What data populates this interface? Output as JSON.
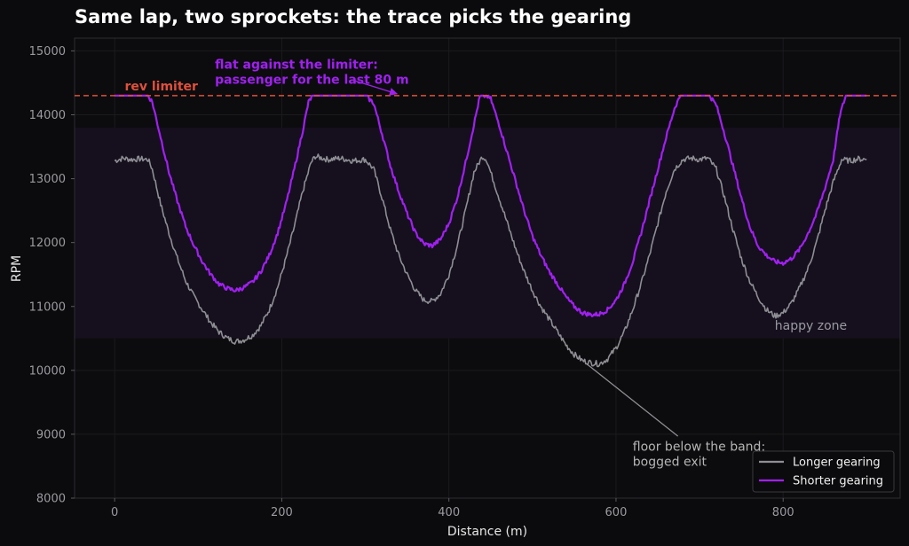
{
  "chart_data": {
    "type": "line",
    "title": "Same lap, two sprockets: the trace picks the gearing",
    "xlabel": "Distance (m)",
    "ylabel": "RPM",
    "xlim": [
      -48,
      940
    ],
    "ylim": [
      8000,
      15200
    ],
    "x_ticks": [
      0,
      200,
      400,
      600,
      800
    ],
    "y_ticks": [
      8000,
      9000,
      10000,
      11000,
      12000,
      13000,
      14000,
      15000
    ],
    "grid": true,
    "legend_position": "bottom-right",
    "colors": {
      "background": "#0b0b0d",
      "plot_background": "#0c0c0e",
      "band": "#160f1e",
      "shorter": "#a020f0",
      "longer": "#8e8e94",
      "limiter": "#e0503c",
      "annotation_purple": "#a020f0",
      "annotation_gray": "#b5b5b5"
    },
    "happy_zone": {
      "label": "happy zone",
      "y_range": [
        10500,
        13800
      ]
    },
    "limiter": {
      "label": "rev limiter",
      "y": 14300
    },
    "series": [
      {
        "name": "Longer gearing",
        "key": "longer",
        "x": [
          0,
          10,
          20,
          30,
          40,
          45,
          55,
          65,
          75,
          85,
          95,
          105,
          115,
          125,
          135,
          145,
          155,
          165,
          175,
          185,
          195,
          205,
          215,
          225,
          235,
          240,
          255,
          270,
          285,
          300,
          310,
          320,
          330,
          340,
          350,
          360,
          370,
          380,
          390,
          400,
          410,
          420,
          430,
          440,
          445,
          450,
          460,
          470,
          480,
          490,
          500,
          510,
          520,
          530,
          540,
          550,
          560,
          570,
          580,
          590,
          600,
          610,
          620,
          630,
          640,
          650,
          660,
          670,
          680,
          690,
          700,
          710,
          720,
          730,
          740,
          750,
          760,
          770,
          780,
          790,
          800,
          810,
          820,
          830,
          840,
          850,
          860,
          870,
          880,
          890,
          900
        ],
        "y": [
          13280,
          13320,
          13300,
          13310,
          13300,
          13150,
          12600,
          12150,
          11750,
          11400,
          11150,
          10950,
          10750,
          10600,
          10500,
          10450,
          10480,
          10550,
          10700,
          10950,
          11300,
          11750,
          12250,
          12800,
          13250,
          13350,
          13300,
          13320,
          13280,
          13300,
          13150,
          12700,
          12200,
          11800,
          11500,
          11250,
          11100,
          11080,
          11200,
          11500,
          11950,
          12500,
          13100,
          13350,
          13300,
          13100,
          12700,
          12300,
          11900,
          11550,
          11250,
          11000,
          10800,
          10600,
          10400,
          10250,
          10150,
          10120,
          10100,
          10180,
          10350,
          10600,
          10950,
          11350,
          11800,
          12300,
          12800,
          13150,
          13300,
          13320,
          13300,
          13320,
          13150,
          12700,
          12200,
          11750,
          11400,
          11150,
          10950,
          10850,
          10900,
          11050,
          11300,
          11600,
          12000,
          12500,
          12950,
          13300,
          13280,
          13310,
          13300
        ]
      },
      {
        "name": "Shorter gearing",
        "key": "shorter",
        "x": [
          0,
          10,
          20,
          30,
          40,
          45,
          55,
          65,
          75,
          85,
          95,
          105,
          115,
          125,
          135,
          145,
          155,
          165,
          175,
          185,
          195,
          205,
          215,
          225,
          232,
          237,
          255,
          270,
          285,
          300,
          310,
          320,
          330,
          340,
          350,
          360,
          370,
          380,
          390,
          400,
          410,
          420,
          430,
          437,
          445,
          450,
          460,
          470,
          480,
          490,
          500,
          510,
          520,
          530,
          540,
          550,
          560,
          570,
          580,
          590,
          600,
          610,
          620,
          630,
          640,
          650,
          660,
          670,
          677,
          685,
          700,
          712,
          720,
          730,
          740,
          750,
          760,
          770,
          780,
          790,
          800,
          810,
          820,
          830,
          840,
          850,
          860,
          868,
          875,
          890,
          900
        ],
        "y": [
          14300,
          14300,
          14300,
          14300,
          14300,
          14200,
          13650,
          13100,
          12650,
          12250,
          11950,
          11700,
          11500,
          11350,
          11280,
          11250,
          11300,
          11380,
          11550,
          11800,
          12150,
          12600,
          13150,
          13750,
          14200,
          14300,
          14300,
          14300,
          14300,
          14300,
          14180,
          13700,
          13200,
          12800,
          12450,
          12150,
          11980,
          11950,
          12050,
          12300,
          12700,
          13250,
          13850,
          14280,
          14300,
          14250,
          13850,
          13400,
          12950,
          12500,
          12100,
          11800,
          11550,
          11350,
          11150,
          11000,
          10900,
          10870,
          10880,
          10950,
          11100,
          11350,
          11700,
          12150,
          12650,
          13150,
          13650,
          14100,
          14300,
          14300,
          14300,
          14300,
          14150,
          13700,
          13200,
          12700,
          12250,
          11950,
          11800,
          11700,
          11680,
          11750,
          11900,
          12150,
          12450,
          12850,
          13300,
          14000,
          14300,
          14300,
          14300
        ]
      }
    ],
    "annotations": [
      {
        "key": "limiter_note",
        "lines": [
          "flat against the limiter:",
          "passenger for the last 80 m"
        ],
        "color": "annotation_purple",
        "target": [
          340,
          14300
        ],
        "text_anchor": [
          120,
          14720
        ]
      },
      {
        "key": "bog_note",
        "lines": [
          "floor below the band:",
          "bogged exit"
        ],
        "color": "annotation_gray",
        "target": [
          565,
          10100
        ],
        "text_anchor": [
          620,
          8740
        ]
      }
    ]
  }
}
